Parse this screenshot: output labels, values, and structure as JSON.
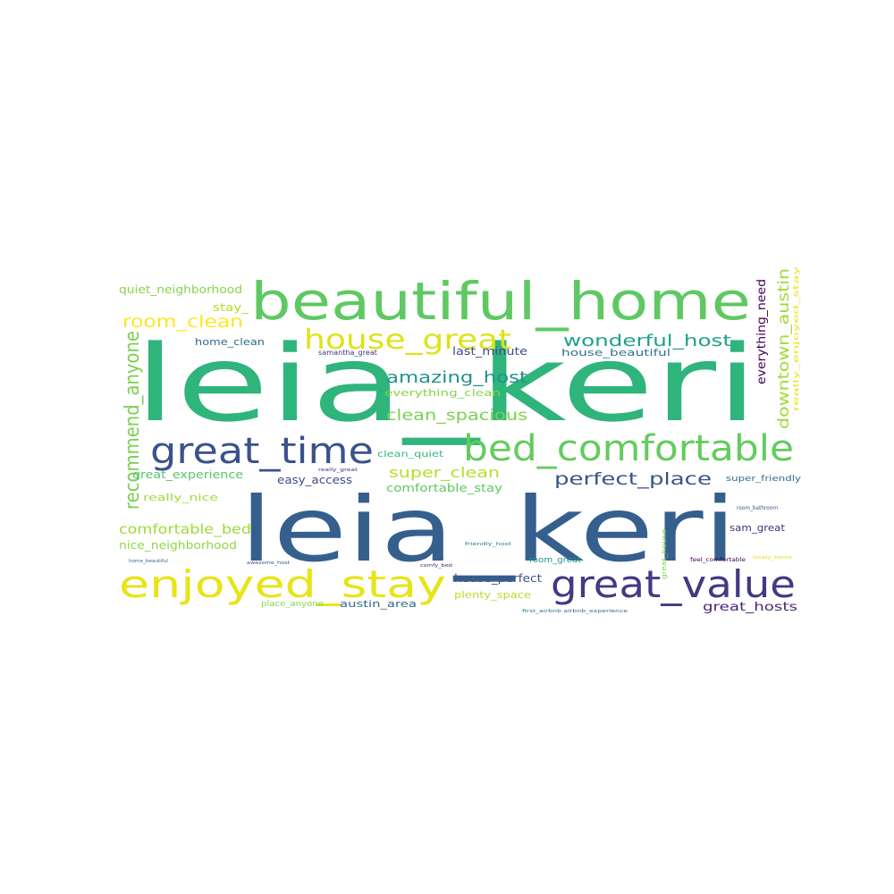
{
  "word_cloud": {
    "words": [
      {
        "text": "leia_keri",
        "color": "#2fb47c"
      },
      {
        "text": "leia_keri",
        "color": "#355f8d"
      },
      {
        "text": "beautiful_home",
        "color": "#5ec962"
      },
      {
        "text": "bed_comfortable",
        "color": "#65cb5e"
      },
      {
        "text": "great_time",
        "color": "#3b528b"
      },
      {
        "text": "enjoyed_stay",
        "color": "#e7e419"
      },
      {
        "text": "great_value",
        "color": "#443983"
      },
      {
        "text": "house_great",
        "color": "#dde318"
      },
      {
        "text": "recommend_anyone",
        "color": "#7ad151"
      },
      {
        "text": "room_clean",
        "color": "#fde725"
      },
      {
        "text": "wonderful_host",
        "color": "#1fa188"
      },
      {
        "text": "amazing_host",
        "color": "#21918c"
      },
      {
        "text": "clean_spacious",
        "color": "#7ad151"
      },
      {
        "text": "perfect_place",
        "color": "#3b528b"
      },
      {
        "text": "super_clean",
        "color": "#b5de2b"
      },
      {
        "text": "downtown_austin",
        "color": "#a0da39"
      },
      {
        "text": "comfortable_bed",
        "color": "#a0da39"
      },
      {
        "text": "everything_need",
        "color": "#440154"
      },
      {
        "text": "quiet_neighborhood",
        "color": "#86d549"
      },
      {
        "text": "stay_",
        "color": "#b5de2b"
      },
      {
        "text": "home_clean",
        "color": "#31688e"
      },
      {
        "text": "samantha_great",
        "color": "#46327e"
      },
      {
        "text": "last_minute",
        "color": "#3e4a89"
      },
      {
        "text": "house_beautiful",
        "color": "#2c728e"
      },
      {
        "text": "everything_clean",
        "color": "#86d549"
      },
      {
        "text": "clean_quiet",
        "color": "#35b779"
      },
      {
        "text": "really_great",
        "color": "#472d7b"
      },
      {
        "text": "great_experience",
        "color": "#54c568"
      },
      {
        "text": "really_nice",
        "color": "#a0da39"
      },
      {
        "text": "easy_access",
        "color": "#3e4989"
      },
      {
        "text": "comfortable_stay",
        "color": "#5ec962"
      },
      {
        "text": "super_friendly",
        "color": "#31688e"
      },
      {
        "text": "nice_neighborhood",
        "color": "#8fd744"
      },
      {
        "text": "sam_great",
        "color": "#472c7a"
      },
      {
        "text": "room_bathroom",
        "color": "#3b528b"
      },
      {
        "text": "really_enjoyed_stay",
        "color": "#e5e419"
      },
      {
        "text": "friendly_host",
        "color": "#2a788e"
      },
      {
        "text": "great_house",
        "color": "#7fd34e"
      },
      {
        "text": "home_beautiful",
        "color": "#31688e"
      },
      {
        "text": "awesome_host",
        "color": "#3b528b"
      },
      {
        "text": "comfy_bed",
        "color": "#482878"
      },
      {
        "text": "room_great",
        "color": "#1f968b"
      },
      {
        "text": "feel_comfortable",
        "color": "#440154"
      },
      {
        "text": "lovely_home",
        "color": "#dde318"
      },
      {
        "text": "house_perfect",
        "color": "#3b528b"
      },
      {
        "text": "plenty_space",
        "color": "#b5de2b"
      },
      {
        "text": "great_hosts",
        "color": "#482475"
      },
      {
        "text": "place_anyone",
        "color": "#86d549"
      },
      {
        "text": "austin_area",
        "color": "#31688e"
      },
      {
        "text": "first_airbnb airbnb_experience",
        "color": "#2c728e"
      }
    ]
  }
}
